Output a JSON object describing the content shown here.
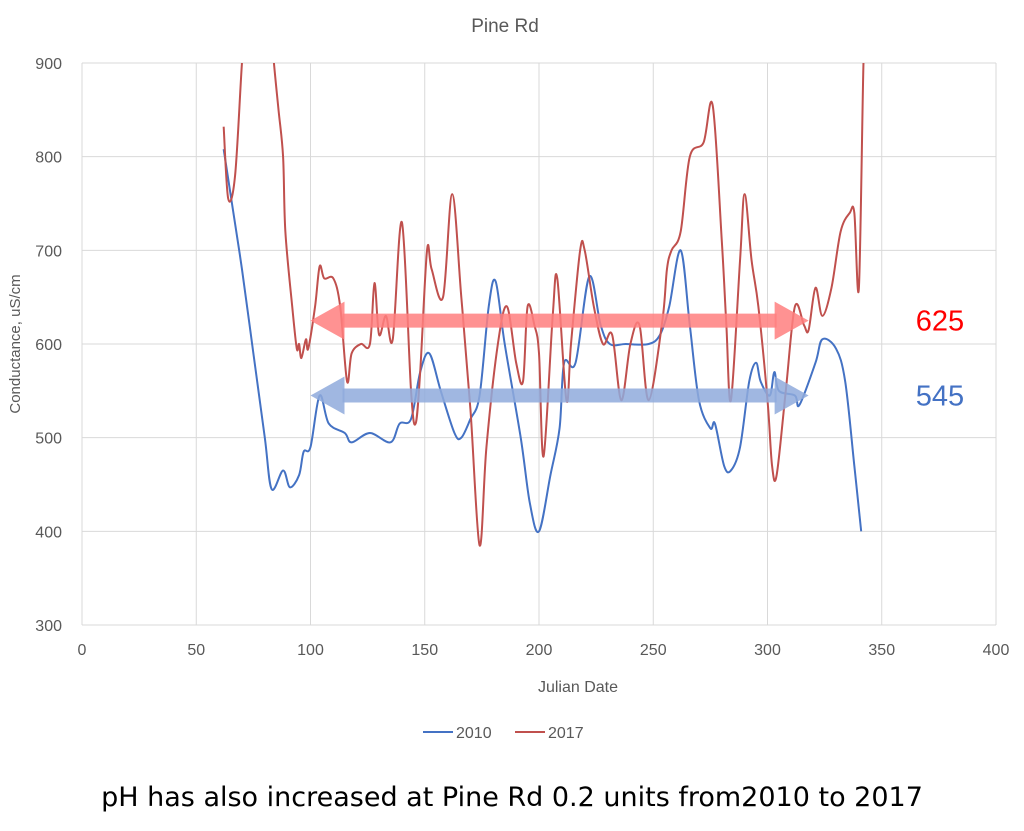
{
  "chart_data": {
    "type": "line",
    "title": "Pine Rd",
    "xlabel": "Julian Date",
    "ylabel": "Conductance, uS/cm",
    "xlim": [
      0,
      400
    ],
    "ylim": [
      300,
      900
    ],
    "xticks": [
      0,
      50,
      100,
      150,
      200,
      250,
      300,
      350,
      400
    ],
    "yticks": [
      300,
      400,
      500,
      600,
      700,
      800,
      900
    ],
    "grid": true,
    "legend_position": "bottom",
    "series": [
      {
        "name": "2010",
        "color": "#4472c4",
        "points": [
          [
            62,
            808
          ],
          [
            65,
            760
          ],
          [
            70,
            680
          ],
          [
            75,
            590
          ],
          [
            80,
            500
          ],
          [
            83,
            445
          ],
          [
            88,
            465
          ],
          [
            91,
            447
          ],
          [
            95,
            460
          ],
          [
            97,
            485
          ],
          [
            100,
            490
          ],
          [
            104,
            545
          ],
          [
            108,
            515
          ],
          [
            115,
            505
          ],
          [
            118,
            495
          ],
          [
            126,
            505
          ],
          [
            135,
            495
          ],
          [
            139,
            515
          ],
          [
            144,
            520
          ],
          [
            148,
            570
          ],
          [
            152,
            590
          ],
          [
            157,
            550
          ],
          [
            163,
            505
          ],
          [
            166,
            500
          ],
          [
            170,
            520
          ],
          [
            174,
            545
          ],
          [
            178,
            640
          ],
          [
            181,
            667
          ],
          [
            185,
            600
          ],
          [
            192,
            500
          ],
          [
            196,
            430
          ],
          [
            200,
            400
          ],
          [
            205,
            460
          ],
          [
            209,
            510
          ],
          [
            211,
            580
          ],
          [
            216,
            580
          ],
          [
            222,
            672
          ],
          [
            227,
            620
          ],
          [
            231,
            600
          ],
          [
            238,
            600
          ],
          [
            248,
            600
          ],
          [
            253,
            610
          ],
          [
            257,
            640
          ],
          [
            262,
            700
          ],
          [
            266,
            620
          ],
          [
            270,
            540
          ],
          [
            275,
            510
          ],
          [
            277,
            515
          ],
          [
            281,
            470
          ],
          [
            284,
            465
          ],
          [
            288,
            490
          ],
          [
            292,
            560
          ],
          [
            295,
            580
          ],
          [
            297,
            560
          ],
          [
            301,
            545
          ],
          [
            303,
            570
          ],
          [
            305,
            550
          ],
          [
            312,
            545
          ],
          [
            314,
            535
          ],
          [
            321,
            580
          ],
          [
            324,
            605
          ],
          [
            330,
            595
          ],
          [
            334,
            560
          ],
          [
            338,
            470
          ],
          [
            341,
            400
          ]
        ]
      },
      {
        "name": "2017",
        "color": "#c0504d",
        "points": [
          [
            62,
            832
          ],
          [
            64,
            755
          ],
          [
            67,
            780
          ],
          [
            70,
            900
          ],
          [
            72,
            960
          ],
          [
            82,
            960
          ],
          [
            84,
            900
          ],
          [
            86,
            850
          ],
          [
            88,
            800
          ],
          [
            89,
            720
          ],
          [
            92,
            640
          ],
          [
            94,
            595
          ],
          [
            95,
            600
          ],
          [
            96,
            585
          ],
          [
            98,
            605
          ],
          [
            99,
            595
          ],
          [
            102,
            640
          ],
          [
            104,
            683
          ],
          [
            106,
            670
          ],
          [
            110,
            670
          ],
          [
            113,
            640
          ],
          [
            116,
            560
          ],
          [
            118,
            590
          ],
          [
            122,
            600
          ],
          [
            126,
            600
          ],
          [
            128,
            665
          ],
          [
            130,
            610
          ],
          [
            133,
            630
          ],
          [
            136,
            605
          ],
          [
            140,
            730
          ],
          [
            144,
            550
          ],
          [
            146,
            515
          ],
          [
            148,
            570
          ],
          [
            151,
            700
          ],
          [
            153,
            680
          ],
          [
            158,
            650
          ],
          [
            162,
            760
          ],
          [
            166,
            650
          ],
          [
            170,
            530
          ],
          [
            174,
            385
          ],
          [
            177,
            490
          ],
          [
            182,
            600
          ],
          [
            186,
            640
          ],
          [
            190,
            580
          ],
          [
            193,
            560
          ],
          [
            195,
            640
          ],
          [
            198,
            620
          ],
          [
            200,
            590
          ],
          [
            202,
            480
          ],
          [
            206,
            630
          ],
          [
            208,
            670
          ],
          [
            212,
            540
          ],
          [
            214,
            600
          ],
          [
            218,
            700
          ],
          [
            220,
            700
          ],
          [
            224,
            640
          ],
          [
            228,
            600
          ],
          [
            232,
            610
          ],
          [
            236,
            540
          ],
          [
            240,
            600
          ],
          [
            244,
            620
          ],
          [
            248,
            540
          ],
          [
            254,
            625
          ],
          [
            256,
            680
          ],
          [
            258,
            700
          ],
          [
            262,
            720
          ],
          [
            266,
            800
          ],
          [
            272,
            815
          ],
          [
            276,
            855
          ],
          [
            280,
            710
          ],
          [
            282,
            620
          ],
          [
            284,
            540
          ],
          [
            288,
            690
          ],
          [
            290,
            760
          ],
          [
            293,
            690
          ],
          [
            296,
            640
          ],
          [
            300,
            540
          ],
          [
            302,
            470
          ],
          [
            304,
            460
          ],
          [
            308,
            550
          ],
          [
            312,
            640
          ],
          [
            316,
            620
          ],
          [
            318,
            615
          ],
          [
            321,
            660
          ],
          [
            324,
            630
          ],
          [
            328,
            660
          ],
          [
            332,
            720
          ],
          [
            336,
            740
          ],
          [
            338,
            740
          ],
          [
            340,
            660
          ],
          [
            342,
            900
          ],
          [
            343,
            930
          ]
        ]
      }
    ],
    "annotations": [
      {
        "text": "625",
        "value": 625,
        "from": 100,
        "to": 318,
        "color": "#ff0000",
        "arrow_color": "#ff7f7f"
      },
      {
        "text": "545",
        "value": 545,
        "from": 100,
        "to": 318,
        "color": "#4472c4",
        "arrow_color": "#8faadc"
      }
    ]
  },
  "caption": "pH has also increased at Pine Rd 0.2 units from2010 to 2017"
}
